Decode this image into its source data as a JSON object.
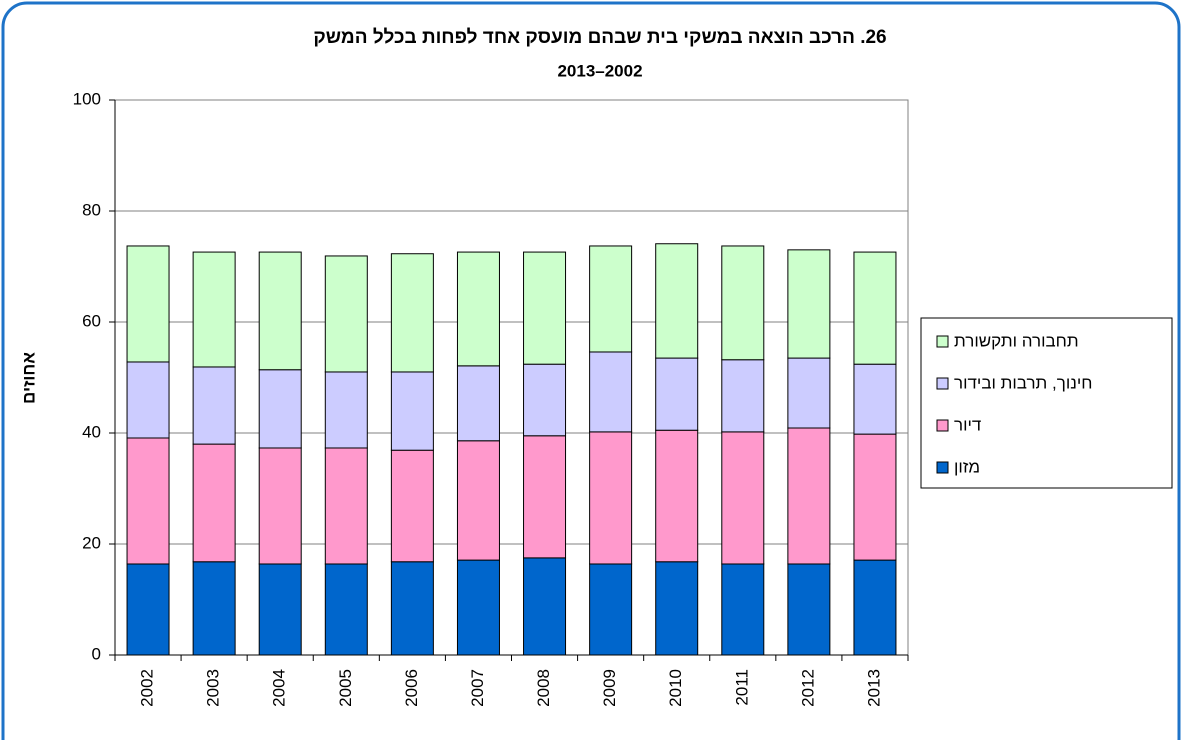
{
  "chart_data": {
    "type": "stacked_bar",
    "title": "26. הרכב הוצאה במשקי בית שבהם מועסק אחד לפחות בכלל המשק",
    "subtitle": "2013–2002",
    "y_label": "אחוזים",
    "categories": [
      "2002",
      "2003",
      "2004",
      "2005",
      "2006",
      "2007",
      "2008",
      "2009",
      "2010",
      "2011",
      "2012",
      "2013"
    ],
    "series": [
      {
        "name": "מזון",
        "color": "#0066cc",
        "values": [
          16.4,
          16.8,
          16.4,
          16.4,
          16.8,
          17.1,
          17.5,
          16.4,
          16.8,
          16.4,
          16.4,
          17.1
        ]
      },
      {
        "name": "דיור",
        "color": "#ff99cc",
        "values": [
          22.7,
          21.2,
          20.9,
          20.9,
          20.1,
          21.5,
          22.0,
          23.8,
          23.7,
          23.8,
          24.5,
          22.7
        ]
      },
      {
        "name": "חינוך, תרבות ובידור",
        "color": "#ccccff",
        "values": [
          13.7,
          13.9,
          14.1,
          13.7,
          14.1,
          13.5,
          12.9,
          14.4,
          13.0,
          13.0,
          12.6,
          12.6
        ]
      },
      {
        "name": "תחבורה ותקשורת",
        "color": "#ccffcc",
        "values": [
          20.9,
          20.7,
          21.2,
          20.9,
          21.3,
          20.5,
          20.2,
          19.1,
          20.6,
          20.5,
          19.5,
          20.2
        ]
      }
    ],
    "ylim": [
      0,
      100
    ],
    "yticks": [
      0,
      20,
      40,
      60,
      80,
      100
    ],
    "grid": true
  }
}
